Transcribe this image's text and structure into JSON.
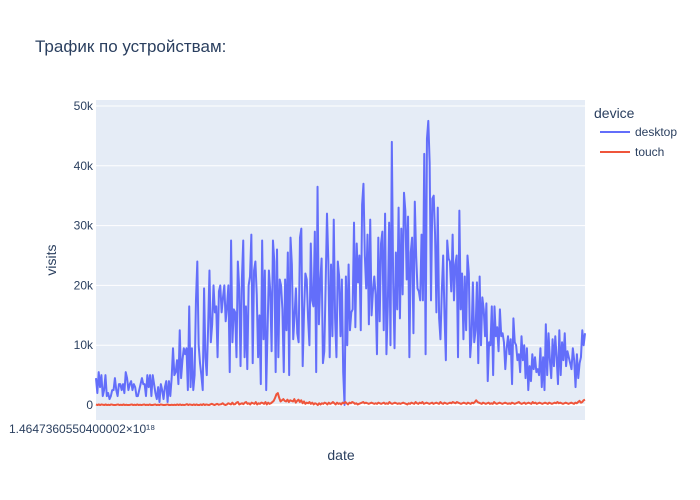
{
  "chart_data": {
    "type": "line",
    "title": "Трафик по устройствам:",
    "xlabel": "date",
    "ylabel": "visits",
    "x_tick_label": "1.4647360550400002×10¹⁸",
    "ylim": [
      -2500,
      51000
    ],
    "yticks": [
      {
        "value": 0,
        "label": "0"
      },
      {
        "value": 10000,
        "label": "10k"
      },
      {
        "value": 20000,
        "label": "20k"
      },
      {
        "value": 30000,
        "label": "30k"
      },
      {
        "value": 40000,
        "label": "40k"
      },
      {
        "value": 50000,
        "label": "50k"
      }
    ],
    "legend": {
      "title": "device",
      "placement": "right"
    },
    "grid": true,
    "background": "#e5ecf6",
    "series": [
      {
        "name": "desktop",
        "color": "#636efa",
        "values": [
          4500,
          2000,
          5500,
          3000,
          5000,
          1500,
          2500,
          5000,
          1500,
          2000,
          1000,
          1500,
          2500,
          2500,
          4500,
          2500,
          1500,
          3500,
          3500,
          2500,
          3500,
          2000,
          5500,
          4500,
          2500,
          3500,
          4000,
          2500,
          3500,
          3000,
          1500,
          1500,
          2500,
          3500,
          4500,
          3500,
          3500,
          1500,
          5000,
          3000,
          5000,
          1500,
          5000,
          3500,
          2000,
          1000,
          3000,
          500,
          3500,
          2500,
          1000,
          3000,
          4000,
          500,
          4000,
          1500,
          4500,
          9500,
          5000,
          5500,
          7500,
          3500,
          12500,
          4500,
          7500,
          9500,
          8500,
          9500,
          2500,
          16500,
          3000,
          9500,
          2500,
          5000,
          17500,
          24000,
          10000,
          7000,
          5000,
          2500,
          19500,
          8000,
          5000,
          13000,
          22500,
          10500,
          13500,
          20000,
          15500,
          16500,
          8000,
          19000,
          20000,
          15500,
          18000,
          20000,
          14000,
          16500,
          20000,
          5500,
          27500,
          10500,
          16000,
          15500,
          8000,
          24000,
          19500,
          6500,
          21000,
          27500,
          8000,
          16500,
          6000,
          20000,
          21500,
          28500,
          7000,
          22500,
          24000,
          18500,
          8000,
          15000,
          3500,
          27500,
          11000,
          22500,
          2500,
          12500,
          22500,
          19000,
          9000,
          27500,
          24000,
          5500,
          26000,
          8000,
          21000,
          20000,
          16000,
          5500,
          21000,
          12500,
          25500,
          5000,
          28000,
          23500,
          11000,
          15000,
          19500,
          12000,
          10500,
          28000,
          29500,
          6500,
          15500,
          22000,
          21000,
          14500,
          10000,
          27000,
          17500,
          16500,
          29000,
          5500,
          36500,
          13500,
          20500,
          24500,
          7000,
          9000,
          20000,
          32000,
          24000,
          8000,
          23500,
          11500,
          31000,
          14500,
          8000,
          24000,
          21500,
          11500,
          21000,
          5500,
          0,
          21500,
          10000,
          23500,
          12500,
          15500,
          16000,
          30500,
          13000,
          27000,
          20500,
          25000,
          12500,
          33500,
          37000,
          25000,
          19500,
          28500,
          13500,
          31000,
          15000,
          19000,
          21500,
          18500,
          8500,
          28000,
          14000,
          27000,
          29000,
          12500,
          32000,
          8500,
          16500,
          30500,
          10000,
          44000,
          20500,
          9500,
          25500,
          16000,
          33000,
          14500,
          29500,
          18500,
          35500,
          32500,
          21000,
          31500,
          8000,
          25500,
          28000,
          12000,
          34000,
          25000,
          19500,
          19000,
          17500,
          28500,
          17500,
          42000,
          8500,
          44500,
          47500,
          40500,
          17500,
          34500,
          35000,
          28500,
          15500,
          33000,
          14500,
          11000,
          19000,
          25000,
          15000,
          7500,
          27500,
          24500,
          24000,
          19000,
          28500,
          17500,
          23500,
          25000,
          8000,
          32500,
          16000,
          22000,
          11000,
          21500,
          12500,
          25000,
          22000,
          8000,
          11500,
          20500,
          10500,
          12500,
          20500,
          7000,
          21500,
          10000,
          18000,
          16000,
          11500,
          17000,
          4000,
          10500,
          10000,
          16500,
          5000,
          16500,
          11500,
          13000,
          9000,
          16000,
          11500,
          12000,
          10500,
          6000,
          9500,
          11500,
          8500,
          11000,
          3500,
          14500,
          10500,
          10000,
          7500,
          8500,
          5500,
          11500,
          7500,
          10000,
          4500,
          9500,
          2500,
          6500,
          4000,
          8500,
          6000,
          8000,
          5500,
          6000,
          5000,
          9500,
          3000,
          8000,
          2500,
          13500,
          5000,
          12000,
          7500,
          4500,
          11000,
          6500,
          11500,
          8000,
          3500,
          12500,
          5000,
          10500,
          7500,
          12000,
          6500,
          9000,
          8000,
          7000,
          6000,
          9500,
          7500,
          3000,
          8500,
          4500,
          7000,
          8000,
          12500,
          10000,
          12000
        ]
      },
      {
        "name": "touch",
        "color": "#ef553b",
        "values": [
          100,
          0,
          100,
          0,
          100,
          50,
          0,
          100,
          0,
          50,
          0,
          100,
          50,
          0,
          0,
          50,
          100,
          0,
          50,
          0,
          100,
          0,
          50,
          0,
          0,
          50,
          100,
          0,
          50,
          0,
          100,
          0,
          50,
          0,
          50,
          100,
          0,
          50,
          0,
          100,
          0,
          0,
          50,
          100,
          0,
          50,
          0,
          100,
          50,
          0,
          0,
          50,
          100,
          0,
          0,
          50,
          0,
          50,
          0,
          100,
          0,
          100,
          0,
          50,
          0,
          50,
          150,
          0,
          100,
          50,
          0,
          100,
          0,
          100,
          0,
          0,
          100,
          0,
          150,
          0,
          100,
          50,
          0,
          100,
          200,
          100,
          0,
          100,
          200,
          50,
          100,
          150,
          300,
          100,
          0,
          100,
          300,
          200,
          100,
          400,
          100,
          150,
          400,
          500,
          100,
          200,
          300,
          150,
          400,
          500,
          200,
          300,
          100,
          400,
          300,
          200,
          500,
          100,
          300,
          200,
          400,
          350,
          200,
          500,
          100,
          400,
          200,
          300,
          500,
          700,
          1200,
          1800,
          2000,
          1200,
          600,
          800,
          1000,
          700,
          600,
          900,
          500,
          800,
          700,
          600,
          1000,
          400,
          700,
          900,
          500,
          800,
          300,
          600,
          200,
          400,
          300,
          500,
          200,
          400,
          100,
          300,
          200,
          0,
          300,
          100,
          300,
          200,
          400,
          300,
          100,
          400,
          200,
          300,
          500,
          300,
          100,
          400,
          200,
          300,
          100,
          400,
          300,
          500,
          300,
          100,
          400,
          300,
          500,
          400,
          200,
          300,
          100,
          200,
          300,
          400,
          500,
          300,
          400,
          300,
          200,
          300,
          400,
          300,
          200,
          300,
          200,
          400,
          300,
          200,
          300,
          400,
          200,
          300,
          200,
          500,
          300,
          200,
          300,
          400,
          300,
          200,
          300,
          200,
          300,
          400,
          300,
          200,
          100,
          300,
          200,
          400,
          300,
          200,
          500,
          300,
          200,
          400,
          300,
          500,
          200,
          300,
          400,
          300,
          200,
          300,
          400,
          200,
          300,
          400,
          300,
          200,
          500,
          300,
          200,
          400,
          300,
          200,
          300,
          400,
          300,
          500,
          400,
          300,
          500,
          400,
          300,
          200,
          300,
          400,
          300,
          200,
          400,
          300,
          200,
          400,
          300,
          500,
          800,
          500,
          400,
          300,
          200,
          400,
          300,
          200,
          300,
          400,
          200,
          300,
          200,
          500,
          300,
          200,
          300,
          400,
          300,
          200,
          300,
          400,
          300,
          200,
          300,
          200,
          400,
          300,
          200,
          300,
          400,
          500,
          300,
          200,
          300,
          400,
          200,
          300,
          400,
          300,
          200,
          500,
          300,
          400,
          200,
          300,
          400,
          300,
          200,
          300,
          400,
          300,
          200,
          400,
          300,
          200,
          300,
          400,
          300,
          500,
          300,
          400,
          300,
          200,
          300,
          400,
          300,
          200,
          300,
          400,
          300,
          200,
          400,
          300,
          500,
          700,
          400,
          500,
          800,
          900
        ]
      }
    ]
  }
}
